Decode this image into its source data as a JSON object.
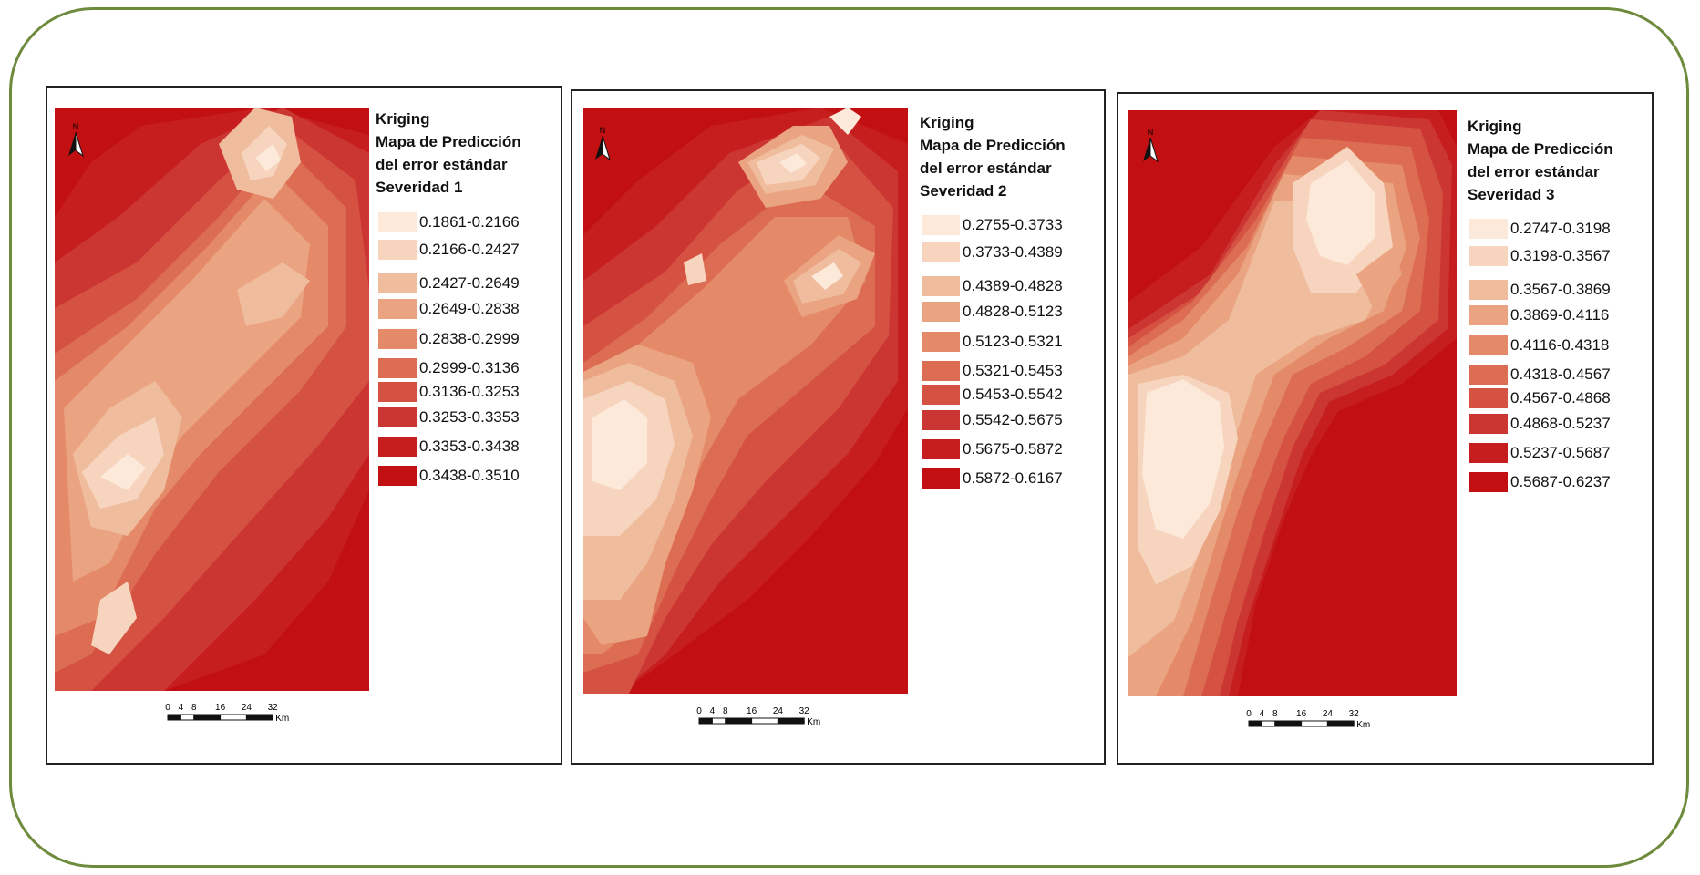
{
  "palette": [
    "#fce9da",
    "#f6d4bd",
    "#f0bc9e",
    "#eaa482",
    "#e48a68",
    "#dc6d53",
    "#d55142",
    "#cc3632",
    "#c61e1f",
    "#c10f12"
  ],
  "panels": [
    {
      "title": [
        "Kriging",
        "Mapa de Predicción",
        "del error estándar",
        "Severidad 1"
      ],
      "classes": [
        "0.1861-0.2166",
        "0.2166-0.2427",
        "0.2427-0.2649",
        "0.2649-0.2838",
        "0.2838-0.2999",
        "0.2999-0.3136",
        "0.3136-0.3253",
        "0.3253-0.3353",
        "0.3353-0.3438",
        "0.3438-0.3510"
      ],
      "north_label": "N",
      "scale_ticks": [
        "0",
        "4",
        "8",
        "16",
        "24",
        "32"
      ],
      "scale_unit": "Km"
    },
    {
      "title": [
        "Kriging",
        "Mapa de Predicción",
        "del error estándar",
        "Severidad 2"
      ],
      "classes": [
        "0.2755-0.3733",
        "0.3733-0.4389",
        "0.4389-0.4828",
        "0.4828-0.5123",
        "0.5123-0.5321",
        "0.5321-0.5453",
        "0.5453-0.5542",
        "0.5542-0.5675",
        "0.5675-0.5872",
        "0.5872-0.6167"
      ],
      "north_label": "N",
      "scale_ticks": [
        "0",
        "4",
        "8",
        "16",
        "24",
        "32"
      ],
      "scale_unit": "Km"
    },
    {
      "title": [
        "Kriging",
        "Mapa de Predicción",
        "del error estándar",
        "Severidad 3"
      ],
      "classes": [
        "0.2747-0.3198",
        "0.3198-0.3567",
        "0.3567-0.3869",
        "0.3869-0.4116",
        "0.4116-0.4318",
        "0.4318-0.4567",
        "0.4567-0.4868",
        "0.4868-0.5237",
        "0.5237-0.5687",
        "0.5687-0.6237"
      ],
      "north_label": "N",
      "scale_ticks": [
        "0",
        "4",
        "8",
        "16",
        "24",
        "32"
      ],
      "scale_unit": "Km"
    }
  ]
}
